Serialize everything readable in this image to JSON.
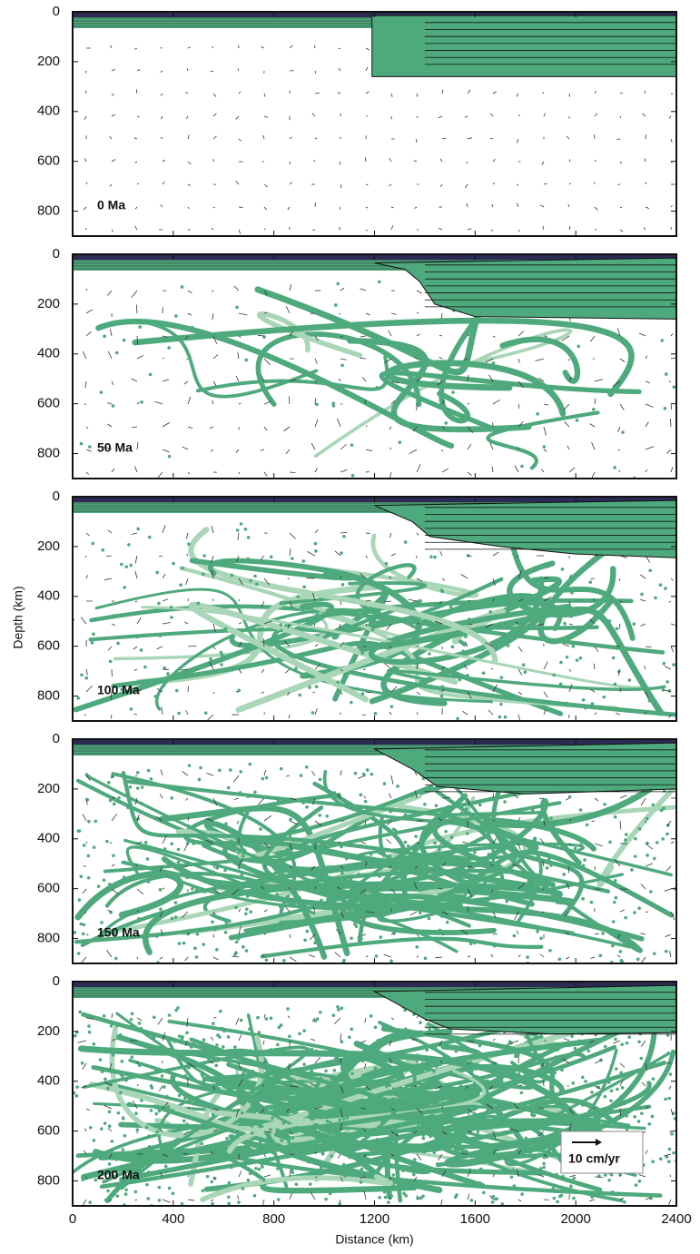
{
  "chart_data": [
    {
      "type": "field",
      "annotation": "0 Ma",
      "ylim": [
        0,
        900
      ],
      "yticks": [
        0,
        200,
        400,
        600,
        800
      ],
      "xlim": [
        0,
        2400
      ]
    },
    {
      "type": "field",
      "annotation": "50 Ma",
      "ylim": [
        0,
        900
      ],
      "yticks": [
        0,
        200,
        400,
        600,
        800
      ],
      "xlim": [
        0,
        2400
      ]
    },
    {
      "type": "field",
      "annotation": "100 Ma",
      "ylim": [
        0,
        900
      ],
      "yticks": [
        0,
        200,
        400,
        600,
        800
      ],
      "xlim": [
        0,
        2400
      ],
      "ylabel": "Depth (km)"
    },
    {
      "type": "field",
      "annotation": "150 Ma",
      "ylim": [
        0,
        900
      ],
      "yticks": [
        0,
        200,
        400,
        600,
        800
      ],
      "xlim": [
        0,
        2400
      ]
    },
    {
      "type": "field",
      "annotation": "200 Ma",
      "ylim": [
        0,
        900
      ],
      "yticks": [
        0,
        200,
        400,
        600,
        800
      ],
      "xlim": [
        0,
        2400
      ],
      "xticks": [
        0,
        400,
        800,
        1200,
        1600,
        2000,
        2400
      ],
      "xlabel": "Distance (km)",
      "scale_label": "10 cm/yr"
    }
  ]
}
